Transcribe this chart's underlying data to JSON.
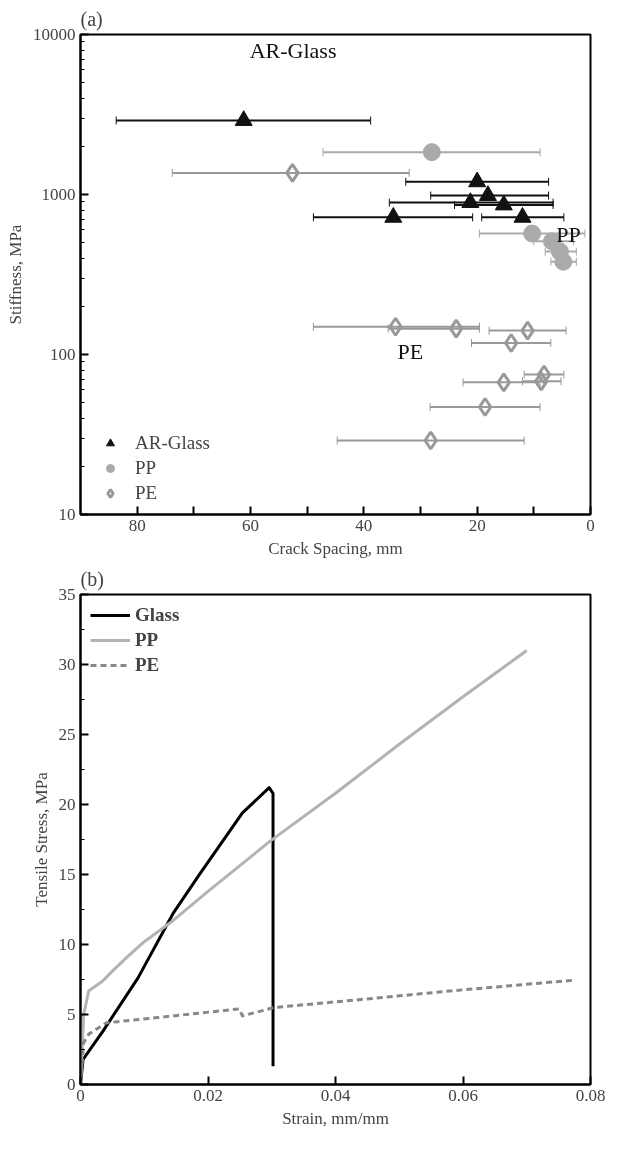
{
  "chart_data": [
    {
      "type": "scatter",
      "title": "(a)",
      "xlabel": "Crack Spacing, mm",
      "ylabel": "Stiffness, MPa",
      "log": "y",
      "grid": false,
      "legend": "bottom left",
      "xlim": [
        90,
        0
      ],
      "xticks": [
        80,
        {
          "value": 70,
          "label": null
        },
        60,
        {
          "value": 50,
          "label": null
        },
        40,
        {
          "value": 30,
          "label": null
        },
        20,
        {
          "value": 10,
          "label": null
        },
        0
      ],
      "ylim": [
        10,
        10000
      ],
      "yticks": [
        10,
        100,
        1000,
        10000
      ],
      "annotations": [
        "AR-Glass",
        "PP",
        "PE"
      ],
      "series": [
        {
          "name": "AR-Glass",
          "color": "#111111",
          "marker": "triangle",
          "x": [
            61.2,
            20,
            18.1,
            21.2,
            15.3,
            34.8,
            12
          ],
          "values": [
            2900,
            1200,
            985,
            890,
            860,
            720,
            720
          ],
          "xerrors": [
            [
              38.8,
              83.7
            ],
            [
              7.4,
              32.6
            ],
            [
              7.4,
              28.2
            ],
            [
              6.6,
              35.5
            ],
            [
              6.6,
              24
            ],
            [
              20.8,
              48.9
            ],
            [
              4.7,
              19.2
            ]
          ]
        },
        {
          "name": "PP",
          "color": "#aaaaaa",
          "marker": "circle",
          "x": [
            28,
            10.3,
            6.8,
            5.4,
            4.8
          ],
          "values": [
            1840,
            570,
            510,
            440,
            380
          ],
          "xerrors": [
            [
              8.9,
              47.2
            ],
            [
              1,
              19.6
            ],
            [
              3,
              10
            ],
            [
              2.5,
              8
            ],
            [
              2.5,
              7
            ]
          ]
        },
        {
          "name": "PE",
          "color": "#999999",
          "marker": "diamond",
          "x": [
            52.6,
            34.4,
            23.7,
            11.1,
            14,
            8.2,
            8.7,
            15.3,
            18.6,
            28.2
          ],
          "values": [
            1365,
            149,
            145,
            141,
            118,
            75,
            68,
            67,
            47,
            29
          ],
          "xerrors": [
            [
              32,
              73.8
            ],
            [
              19.6,
              48.9
            ],
            [
              19.6,
              35.7
            ],
            [
              4.3,
              17.9
            ],
            [
              7,
              21
            ],
            [
              4.7,
              11.7
            ],
            [
              5.2,
              12
            ],
            [
              8.9,
              22.5
            ],
            [
              8.9,
              28.3
            ],
            [
              11.7,
              44.7
            ]
          ]
        }
      ]
    },
    {
      "type": "line",
      "title": "(b)",
      "xlabel": "Strain, mm/mm",
      "ylabel": "Tensile Stress, MPa",
      "grid": false,
      "legend": "top left",
      "xlim": [
        0,
        0.08
      ],
      "xticks": [
        0,
        0.02,
        0.04,
        0.06,
        0.08
      ],
      "ylim": [
        0,
        35
      ],
      "yticks": [
        0,
        5,
        10,
        15,
        20,
        25,
        30,
        35
      ],
      "series": [
        {
          "name": "Glass",
          "color": "#000000",
          "line_style": "solid",
          "x": [
            0,
            0.0004,
            0.0035,
            0.009,
            0.0145,
            0.0188,
            0.0254,
            0.0296,
            0.0302,
            0.0302
          ],
          "values": [
            0,
            1.8,
            3.8,
            7.6,
            12.2,
            15.1,
            19.4,
            21.2,
            20.8,
            1.3
          ]
        },
        {
          "name": "PP",
          "color": "#b3b3b3",
          "line_style": "solid",
          "x": [
            0,
            0.0005,
            0.0013,
            0.0035,
            0.005,
            0.0073,
            0.01,
            0.0145,
            0.02,
            0.0298,
            0.04,
            0.05,
            0.06,
            0.07
          ],
          "values": [
            0,
            5,
            6.7,
            7.4,
            8.1,
            9.1,
            10.2,
            11.7,
            13.8,
            17.4,
            20.8,
            24.3,
            27.7,
            31
          ]
        },
        {
          "name": "PE",
          "color": "#888888",
          "line_style": "dashed",
          "x": [
            0,
            0.0005,
            0.0013,
            0.004,
            0.0117,
            0.0249,
            0.0254,
            0.0304,
            0.0447,
            0.0584,
            0.0774
          ],
          "values": [
            0,
            3,
            3.6,
            4.4,
            4.76,
            5.4,
            4.9,
            5.5,
            6.1,
            6.7,
            7.45
          ]
        }
      ]
    }
  ]
}
